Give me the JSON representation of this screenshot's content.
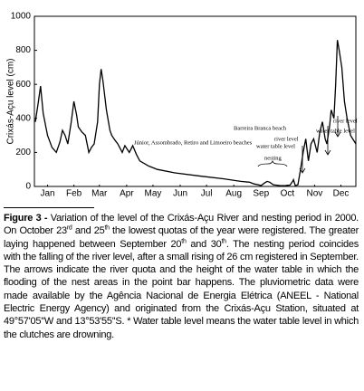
{
  "chart_data": {
    "type": "line",
    "y_label": "Crixás-Açu level (cm)",
    "xlim": [
      0,
      366
    ],
    "ylim": [
      0,
      1000
    ],
    "yticks": [
      0,
      200,
      400,
      600,
      800,
      1000
    ],
    "xticks": [
      {
        "value": 15,
        "label": "Jan"
      },
      {
        "value": 45,
        "label": "Feb"
      },
      {
        "value": 74,
        "label": "Mar"
      },
      {
        "value": 105,
        "label": "Apr"
      },
      {
        "value": 135,
        "label": "May"
      },
      {
        "value": 166,
        "label": "Jun"
      },
      {
        "value": 196,
        "label": "Jul"
      },
      {
        "value": 227,
        "label": "Aug"
      },
      {
        "value": 258,
        "label": "Sep"
      },
      {
        "value": 288,
        "label": "Oct"
      },
      {
        "value": 319,
        "label": "Nov"
      },
      {
        "value": 349,
        "label": "Dec"
      }
    ],
    "series": [
      {
        "color": "#000000",
        "x": [
          1,
          4,
          7,
          10,
          15,
          20,
          25,
          29,
          32,
          35,
          38,
          42,
          45,
          48,
          50,
          54,
          58,
          62,
          65,
          68,
          72,
          74,
          76,
          78,
          82,
          86,
          88,
          92,
          95,
          100,
          103,
          108,
          112,
          116,
          120,
          130,
          140,
          160,
          190,
          215,
          235,
          245,
          250,
          255,
          258,
          262,
          265,
          268,
          272,
          275,
          280,
          285,
          291,
          294,
          295,
          297,
          300,
          303,
          306,
          309,
          312,
          315,
          318,
          322,
          325,
          328,
          331,
          333,
          336,
          338,
          341,
          343,
          345,
          347,
          350,
          353,
          356,
          360,
          366
        ],
        "values": [
          380,
          480,
          590,
          430,
          300,
          230,
          200,
          260,
          330,
          300,
          250,
          380,
          500,
          420,
          350,
          320,
          300,
          200,
          230,
          250,
          380,
          600,
          690,
          620,
          450,
          330,
          300,
          270,
          250,
          200,
          240,
          200,
          240,
          190,
          150,
          120,
          100,
          80,
          60,
          45,
          30,
          25,
          15,
          10,
          5,
          20,
          30,
          25,
          10,
          8,
          5,
          5,
          8,
          30,
          40,
          5,
          10,
          100,
          200,
          280,
          150,
          250,
          280,
          200,
          320,
          380,
          280,
          250,
          350,
          450,
          400,
          600,
          860,
          800,
          700,
          500,
          400,
          300,
          250
        ]
      }
    ],
    "annotations": [
      "Júnior, Assombrado, Retiro and Limoeiro beaches",
      "Barreira Branca beach",
      "river level",
      "water table level",
      "river level",
      "water table level",
      "nesting"
    ]
  },
  "caption": {
    "label": "Figure 3 -",
    "segments": [
      " Variation of the level of the Crixás-Açu River and nesting period in 2000. On October 23",
      "rd",
      " and 25",
      "th",
      " the lowest quotas of the year were registered. The greater laying happened between September 20",
      "th",
      " and 30",
      "th",
      ". The nesting period coincides with the falling of the river level, after a small rising of 26 cm registered in September. The arrows indicate the river quota and the height of the water table in which the flooding of the nest areas in the point bar happens. The pluviometric data were made available by the Agência Nacional de Energia Elétrica (ANEEL - National Electric Energy Agency) and originated from the Crixás-Açu Station, situated at 49°57'05''W and 13°53'55''S. * Water table level means the water table level in which the clutches are drowning."
    ]
  }
}
